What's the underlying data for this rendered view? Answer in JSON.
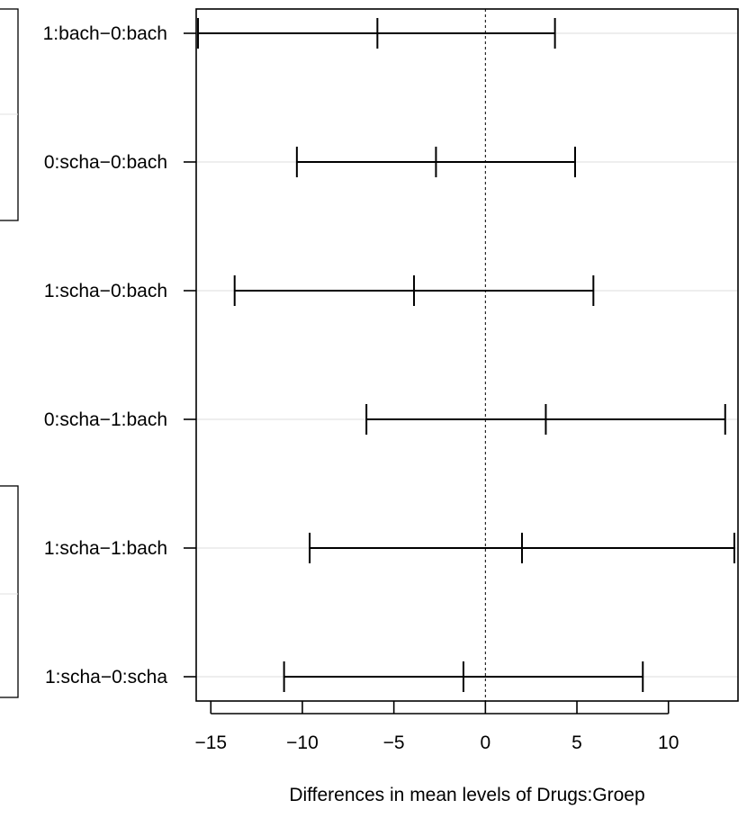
{
  "chart_data": {
    "type": "errorbar",
    "xlabel": "Differences in mean levels of Drugs:Groep",
    "xlim": [
      -15.8,
      13.8
    ],
    "x_ticks": [
      "−15",
      "−10",
      "−5",
      "0",
      "5",
      "10"
    ],
    "x_tick_values": [
      -15,
      -10,
      -5,
      0,
      5,
      10
    ],
    "reference_line": 0,
    "grid": true,
    "comparisons": [
      {
        "label": "1:bach−0:bach",
        "lwr": -15.7,
        "diff": -5.9,
        "upr": 3.8
      },
      {
        "label": "0:scha−0:bach",
        "lwr": -10.3,
        "diff": -2.7,
        "upr": 4.9
      },
      {
        "label": "1:scha−0:bach",
        "lwr": -13.7,
        "diff": -3.9,
        "upr": 5.9
      },
      {
        "label": "0:scha−1:bach",
        "lwr": -6.5,
        "diff": 3.3,
        "upr": 13.1
      },
      {
        "label": "1:scha−1:bach",
        "lwr": -9.6,
        "diff": 2.0,
        "upr": 13.6
      },
      {
        "label": "1:scha−0:scha",
        "lwr": -11.0,
        "diff": -1.2,
        "upr": 8.6
      }
    ]
  }
}
